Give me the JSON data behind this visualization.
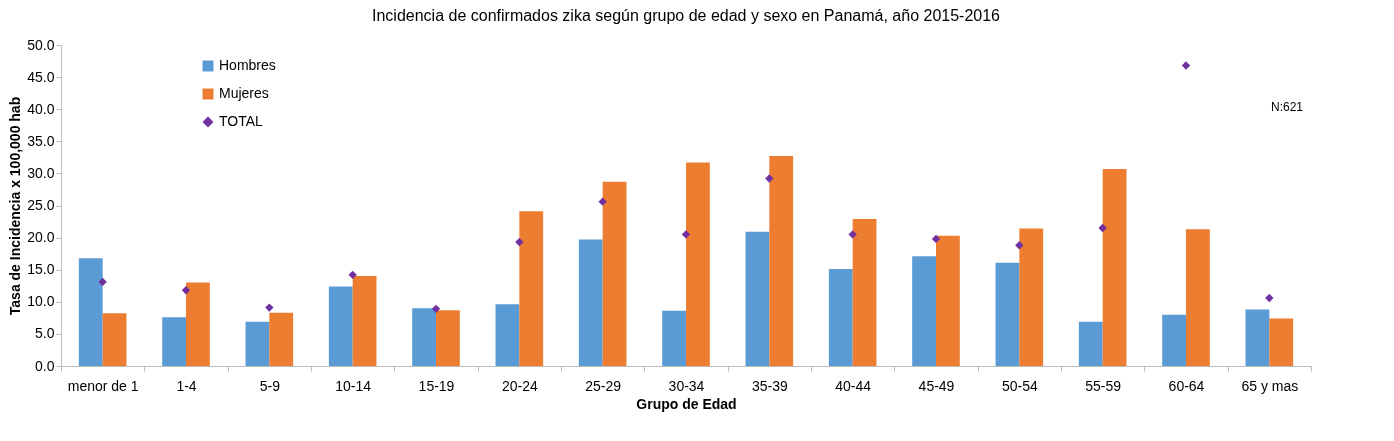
{
  "chart_data": {
    "type": "bar",
    "title": "Incidencia de confirmados zika según grupo de edad y sexo en Panamá, año 2015-2016",
    "xlabel": "Grupo de Edad",
    "ylabel": "Tasa de Incidencia x 100,000 hab",
    "categories": [
      "menor de 1",
      "1-4",
      "5-9",
      "10-14",
      "15-19",
      "20-24",
      "25-29",
      "30-34",
      "35-39",
      "40-44",
      "45-49",
      "50-54",
      "55-59",
      "60-64",
      "65 y mas"
    ],
    "series": [
      {
        "name": "Hombres",
        "color": "#5b9bd5",
        "values": [
          16.8,
          7.6,
          6.9,
          12.4,
          9.0,
          9.6,
          19.7,
          8.6,
          20.9,
          15.1,
          17.1,
          16.1,
          6.9,
          8.0,
          8.8
        ]
      },
      {
        "name": "Mujeres",
        "color": "#ed7d31",
        "values": [
          8.2,
          13.0,
          8.3,
          14.0,
          8.7,
          24.1,
          28.7,
          31.7,
          32.7,
          22.9,
          20.3,
          21.4,
          30.7,
          21.3,
          7.4
        ]
      },
      {
        "name": "TOTAL",
        "type": "scatter",
        "marker": "diamond",
        "color": "#7030a0",
        "values": [
          13.1,
          11.8,
          9.1,
          14.2,
          8.9,
          19.3,
          25.6,
          20.5,
          29.2,
          20.5,
          19.8,
          18.8,
          21.5,
          46.8,
          10.6
        ]
      }
    ],
    "ylim": [
      0,
      50
    ],
    "yticks": [
      {
        "value": 0,
        "label": "0.0"
      },
      {
        "value": 5,
        "label": "5.0"
      },
      {
        "value": 10,
        "label": "10.0"
      },
      {
        "value": 15,
        "label": "15.0"
      },
      {
        "value": 20,
        "label": "20.0"
      },
      {
        "value": 25,
        "label": "25.0"
      },
      {
        "value": 30,
        "label": "30.0"
      },
      {
        "value": 35,
        "label": "35.0"
      },
      {
        "value": 40,
        "label": "40.0"
      },
      {
        "value": 45,
        "label": "45.0"
      },
      {
        "value": 50,
        "label": "50.0"
      }
    ],
    "grid": false,
    "legend": "top left",
    "annotations": [
      "N:621"
    ]
  }
}
